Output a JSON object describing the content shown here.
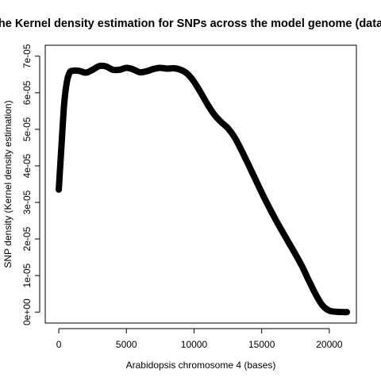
{
  "chart_data": {
    "type": "line",
    "title": "he Kernel density estimation for SNPs across the model genome (data",
    "xlabel": "Arabidopsis chromosome 4 (bases)",
    "ylabel": "SNP density (Kernel density estimation)",
    "xlim": [
      -1000,
      22000
    ],
    "ylim": [
      -3e-06,
      7.3e-05
    ],
    "x_ticks": [
      0,
      5000,
      10000,
      15000,
      20000
    ],
    "x_tick_labels": [
      "0",
      "5000",
      "10000",
      "15000",
      "20000"
    ],
    "y_ticks": [
      0,
      1e-05,
      2e-05,
      3e-05,
      4e-05,
      5e-05,
      6e-05,
      7e-05
    ],
    "y_tick_labels": [
      "0e+00",
      "1e-05",
      "2e-05",
      "3e-05",
      "4e-05",
      "5e-05",
      "6e-05",
      "7e-05"
    ],
    "grid": false,
    "legend": "none",
    "series": [
      {
        "x": [
          0,
          200,
          400,
          600,
          800,
          1000,
          1500,
          2000,
          2500,
          3000,
          3500,
          4000,
          4500,
          5000,
          5500,
          6000,
          6500,
          7000,
          7500,
          8000,
          8500,
          9000,
          9500,
          10000,
          10500,
          11000,
          11500,
          12000,
          12500,
          13000,
          13500,
          14000,
          14500,
          15000,
          15500,
          16000,
          16500,
          17000,
          17500,
          18000,
          18500,
          19000,
          19500,
          20000,
          20500,
          21000,
          21300
        ],
        "y": [
          3.35e-05,
          4.55e-05,
          5.7e-05,
          6.3e-05,
          6.55e-05,
          6.6e-05,
          6.6e-05,
          6.55e-05,
          6.63e-05,
          6.73e-05,
          6.72e-05,
          6.63e-05,
          6.63e-05,
          6.68e-05,
          6.64e-05,
          6.56e-05,
          6.59e-05,
          6.65e-05,
          6.68e-05,
          6.66e-05,
          6.67e-05,
          6.63e-05,
          6.52e-05,
          6.3e-05,
          6e-05,
          5.68e-05,
          5.4e-05,
          5.2e-05,
          5.03e-05,
          4.78e-05,
          4.43e-05,
          4.05e-05,
          3.66e-05,
          3.27e-05,
          2.9e-05,
          2.55e-05,
          2.22e-05,
          1.9e-05,
          1.58e-05,
          1.24e-05,
          8.5e-06,
          4.8e-06,
          1.8e-06,
          4e-07,
          1e-07,
          0.0,
          0.0
        ]
      }
    ]
  }
}
